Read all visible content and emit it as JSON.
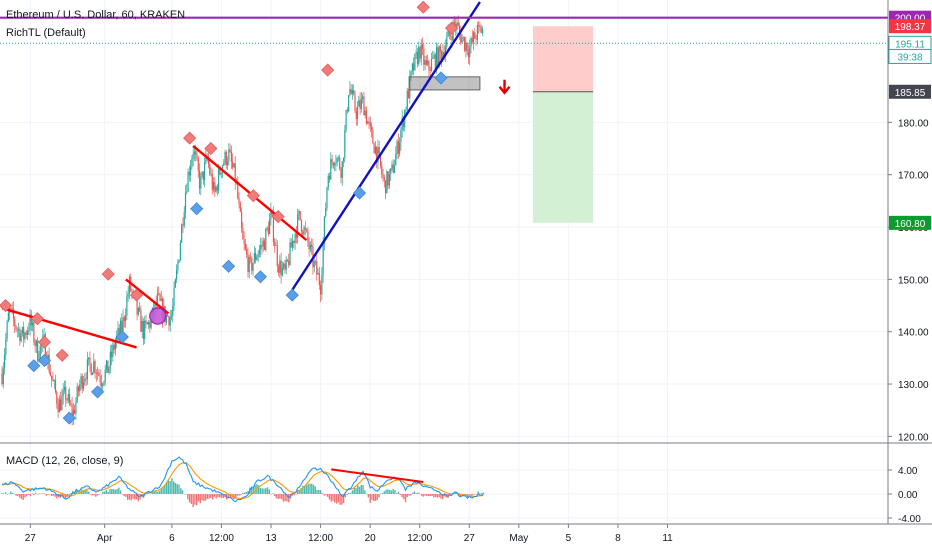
{
  "legend": {
    "symbol": "Ethereum / U.S. Dollar, 60, KRAKEN",
    "indicator": "RichTL (Default)",
    "macd": "MACD (12, 26, close, 9)"
  },
  "colors": {
    "up": "#26a69a",
    "down": "#ef5350",
    "trendline_red": "#ff0000",
    "trendline_blue": "#1010c0",
    "horizontal_purple": "#9c27b0",
    "marker_high": "#f07b7b",
    "marker_low": "#5a9fe8",
    "macd_line": "#2196f3",
    "signal_line": "#ff9800",
    "short_stop_zone": "#ffcccc",
    "short_target_zone": "#d4f0d4"
  },
  "chart_data": {
    "type": "candlestick",
    "y_ticks": [
      120,
      130,
      140,
      150,
      160,
      170,
      180
    ],
    "y_tick_labels": [
      "120.00",
      "130.00",
      "140.00",
      "150.00",
      "160.00",
      "170.00",
      "180.00"
    ],
    "ylim": [
      119.5,
      203
    ],
    "x_ticks": [
      {
        "label": "27",
        "t": 8
      },
      {
        "label": "Apr",
        "t": 29
      },
      {
        "label": "6",
        "t": 48
      },
      {
        "label": "12:00",
        "t": 62
      },
      {
        "label": "13",
        "t": 76
      },
      {
        "label": "12:00",
        "t": 90
      },
      {
        "label": "20",
        "t": 104
      },
      {
        "label": "12:00",
        "t": 118
      },
      {
        "label": "27",
        "t": 132
      },
      {
        "label": "May",
        "t": 146
      },
      {
        "label": "5",
        "t": 160
      },
      {
        "label": "8",
        "t": 174
      },
      {
        "label": "11",
        "t": 188
      }
    ],
    "price_path": [
      [
        0,
        132
      ],
      [
        2,
        144
      ],
      [
        4,
        141
      ],
      [
        6,
        139
      ],
      [
        8,
        142
      ],
      [
        10,
        136
      ],
      [
        12,
        138
      ],
      [
        14,
        131
      ],
      [
        16,
        126
      ],
      [
        18,
        128
      ],
      [
        20,
        124
      ],
      [
        22,
        130
      ],
      [
        24,
        133
      ],
      [
        26,
        134
      ],
      [
        28,
        131
      ],
      [
        30,
        133
      ],
      [
        32,
        138
      ],
      [
        34,
        141
      ],
      [
        36,
        149
      ],
      [
        38,
        144
      ],
      [
        40,
        140
      ],
      [
        42,
        142
      ],
      [
        44,
        146
      ],
      [
        46,
        143
      ],
      [
        48,
        143
      ],
      [
        50,
        155
      ],
      [
        52,
        168
      ],
      [
        54,
        175
      ],
      [
        56,
        168
      ],
      [
        58,
        173
      ],
      [
        60,
        166
      ],
      [
        62,
        172
      ],
      [
        64,
        174
      ],
      [
        66,
        169
      ],
      [
        68,
        157
      ],
      [
        70,
        152
      ],
      [
        72,
        155
      ],
      [
        74,
        157
      ],
      [
        76,
        162
      ],
      [
        78,
        153
      ],
      [
        80,
        151
      ],
      [
        82,
        157
      ],
      [
        84,
        162
      ],
      [
        86,
        158
      ],
      [
        88,
        153
      ],
      [
        90,
        149
      ],
      [
        92,
        170
      ],
      [
        94,
        174
      ],
      [
        96,
        171
      ],
      [
        98,
        187
      ],
      [
        100,
        182
      ],
      [
        102,
        184
      ],
      [
        104,
        178
      ],
      [
        106,
        174
      ],
      [
        108,
        168
      ],
      [
        110,
        170
      ],
      [
        112,
        176
      ],
      [
        114,
        183
      ],
      [
        116,
        190
      ],
      [
        118,
        194
      ],
      [
        120,
        190
      ],
      [
        122,
        192
      ],
      [
        124,
        193
      ],
      [
        126,
        196
      ],
      [
        128,
        199
      ],
      [
        130,
        196
      ],
      [
        132,
        194
      ],
      [
        134,
        197
      ],
      [
        136,
        198
      ]
    ],
    "swing_markers": [
      {
        "t": 1,
        "price": 145,
        "kind": "high"
      },
      {
        "t": 10,
        "price": 142.5,
        "kind": "high"
      },
      {
        "t": 12,
        "price": 138,
        "kind": "high"
      },
      {
        "t": 17,
        "price": 135.5,
        "kind": "high"
      },
      {
        "t": 9,
        "price": 133.5,
        "kind": "low"
      },
      {
        "t": 12,
        "price": 134.5,
        "kind": "low"
      },
      {
        "t": 19,
        "price": 123.5,
        "kind": "low"
      },
      {
        "t": 27,
        "price": 128.5,
        "kind": "low"
      },
      {
        "t": 30,
        "price": 151,
        "kind": "high"
      },
      {
        "t": 38,
        "price": 147,
        "kind": "high"
      },
      {
        "t": 34,
        "price": 139,
        "kind": "low"
      },
      {
        "t": 44,
        "price": 143,
        "kind": "circle"
      },
      {
        "t": 53,
        "price": 177,
        "kind": "high"
      },
      {
        "t": 59,
        "price": 175,
        "kind": "high"
      },
      {
        "t": 71,
        "price": 166,
        "kind": "high"
      },
      {
        "t": 78,
        "price": 162,
        "kind": "high"
      },
      {
        "t": 55,
        "price": 163.5,
        "kind": "low"
      },
      {
        "t": 64,
        "price": 152.5,
        "kind": "low"
      },
      {
        "t": 73,
        "price": 150.5,
        "kind": "low"
      },
      {
        "t": 82,
        "price": 147,
        "kind": "low"
      },
      {
        "t": 92,
        "price": 190,
        "kind": "high"
      },
      {
        "t": 101,
        "price": 166.5,
        "kind": "low"
      },
      {
        "t": 119,
        "price": 202,
        "kind": "high"
      },
      {
        "t": 127,
        "price": 198,
        "kind": "high"
      },
      {
        "t": 124,
        "price": 188.5,
        "kind": "low"
      }
    ],
    "trendlines": [
      {
        "color": "red",
        "from": [
          0,
          144.5
        ],
        "to": [
          38,
          137
        ]
      },
      {
        "color": "red",
        "from": [
          35,
          150
        ],
        "to": [
          47,
          143.5
        ]
      },
      {
        "color": "red",
        "from": [
          54,
          175.5
        ],
        "to": [
          86,
          157.5
        ]
      },
      {
        "color": "blue",
        "from": [
          82,
          148
        ],
        "to": [
          135,
          203
        ]
      },
      {
        "color": "purple",
        "from": [
          0,
          200
        ],
        "to": [
          175,
          200
        ]
      }
    ],
    "horizontal_levels": [
      {
        "label": "200.00",
        "price": 200,
        "color": "purple"
      },
      {
        "label": "198.37",
        "price": 198.37,
        "color": "red"
      },
      {
        "label": "195.11",
        "price": 195.11,
        "color": "teal"
      },
      {
        "label": "39:38",
        "price": 192.6,
        "color": "teal"
      },
      {
        "label": "185.85",
        "price": 185.85,
        "color": "dark"
      },
      {
        "label": "160.80",
        "price": 160.8,
        "color": "green"
      }
    ],
    "resistance_box": {
      "t_start": 115,
      "t_end": 135,
      "price_low": 186.2,
      "price_high": 188.7
    },
    "short_position": {
      "t_start": 150,
      "t_end": 167,
      "stop": 198.37,
      "entry": 185.85,
      "target": 160.8
    },
    "arrow": {
      "t": 138,
      "price": 187,
      "direction": "down"
    },
    "macd": {
      "ylim": [
        -4.5,
        7.5
      ],
      "tick_labels": [
        "4.00",
        "0.00",
        "-4.00"
      ],
      "tick_values": [
        4,
        0,
        -4
      ],
      "path": [
        [
          0,
          1.5
        ],
        [
          3,
          2
        ],
        [
          6,
          0.5
        ],
        [
          9,
          0.8
        ],
        [
          12,
          1
        ],
        [
          15,
          0.2
        ],
        [
          18,
          -0.8
        ],
        [
          21,
          0.5
        ],
        [
          24,
          1.2
        ],
        [
          27,
          0.3
        ],
        [
          30,
          1.5
        ],
        [
          33,
          2.8
        ],
        [
          36,
          0.8
        ],
        [
          39,
          -0.5
        ],
        [
          42,
          0.5
        ],
        [
          45,
          1.5
        ],
        [
          48,
          5.5
        ],
        [
          50,
          6.1
        ],
        [
          52,
          5
        ],
        [
          54,
          2
        ],
        [
          57,
          1.2
        ],
        [
          60,
          0.5
        ],
        [
          63,
          -0.3
        ],
        [
          66,
          -1.2
        ],
        [
          69,
          -0.4
        ],
        [
          72,
          2
        ],
        [
          75,
          3
        ],
        [
          78,
          1.5
        ],
        [
          81,
          -0.5
        ],
        [
          84,
          1
        ],
        [
          87,
          4
        ],
        [
          90,
          4.2
        ],
        [
          92,
          3
        ],
        [
          94,
          1.5
        ],
        [
          96,
          -0.5
        ],
        [
          98,
          0.8
        ],
        [
          100,
          2.2
        ],
        [
          102,
          4
        ],
        [
          104,
          1.2
        ],
        [
          106,
          0.5
        ],
        [
          109,
          2.5
        ],
        [
          112,
          2.6
        ],
        [
          114,
          0.8
        ],
        [
          117,
          2
        ],
        [
          120,
          1
        ],
        [
          123,
          0.6
        ],
        [
          126,
          -0.6
        ],
        [
          128,
          0.3
        ],
        [
          130,
          -0.5
        ],
        [
          133,
          -0.6
        ],
        [
          136,
          0.2
        ]
      ],
      "divergence_line": {
        "from": [
          93,
          4.1
        ],
        "to": [
          119,
          2
        ]
      }
    }
  }
}
